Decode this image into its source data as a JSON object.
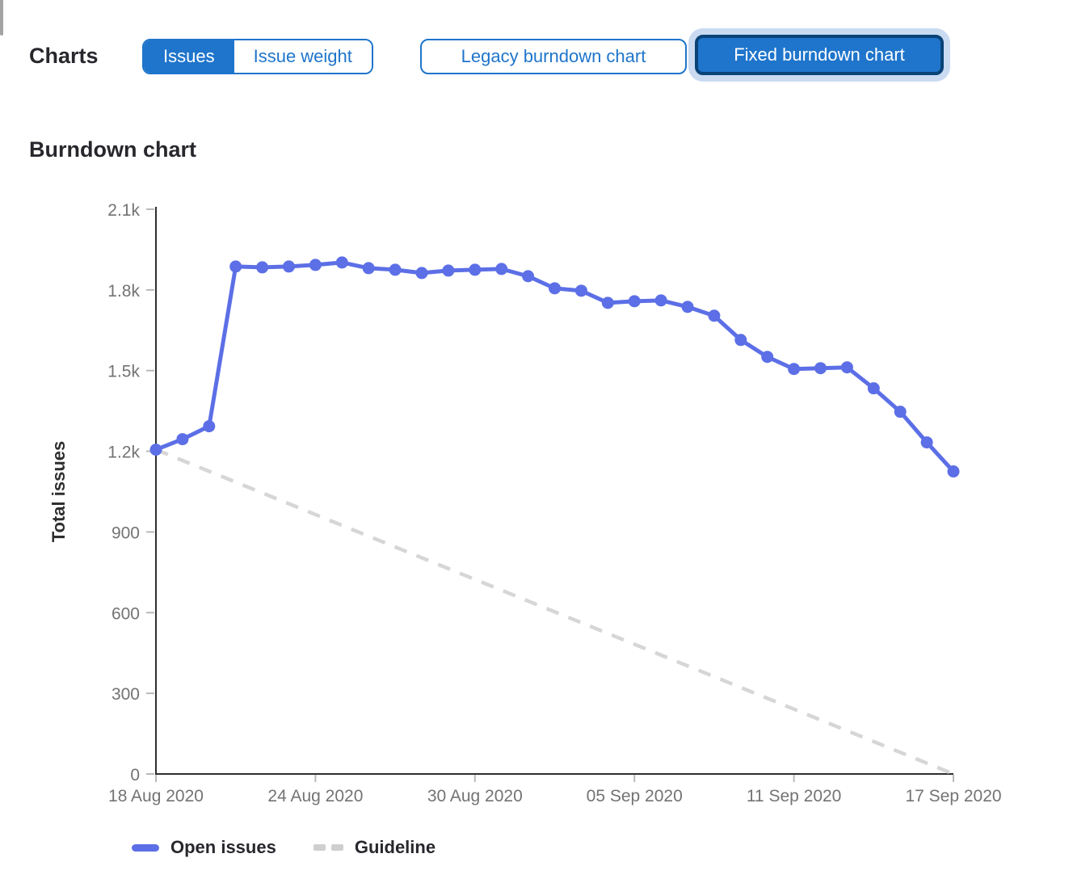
{
  "toolbar": {
    "charts_label": "Charts",
    "issues_label": "Issues",
    "issue_weight_label": "Issue weight",
    "legacy_label": "Legacy burndown chart",
    "fixed_label": "Fixed burndown chart"
  },
  "chart": {
    "title": "Burndown chart",
    "y_axis_label": "Total issues",
    "legend": [
      {
        "label": "Open issues",
        "color": "#5c6fe6"
      },
      {
        "label": "Guideline",
        "color": "#d6d6d6"
      }
    ]
  },
  "colors": {
    "accent_blue": "#1f75cb",
    "accent_blue_dark_border": "#0a4377",
    "focus_ring": "#c9daf1",
    "series_blue": "#5c6fe6",
    "guideline_gray": "#d6d6d6",
    "axis": "#2e2e2e",
    "tick_mark": "#b9b9b9",
    "tick_label": "#737373",
    "text_dark": "#28272d"
  },
  "chart_data": {
    "type": "line",
    "title": "Burndown chart",
    "xlabel": "",
    "ylabel": "Total issues",
    "ylim": [
      0,
      2100
    ],
    "grid": false,
    "legend_position": "bottom",
    "x": [
      "18 Aug 2020",
      "19 Aug 2020",
      "20 Aug 2020",
      "21 Aug 2020",
      "22 Aug 2020",
      "23 Aug 2020",
      "24 Aug 2020",
      "25 Aug 2020",
      "26 Aug 2020",
      "27 Aug 2020",
      "28 Aug 2020",
      "29 Aug 2020",
      "30 Aug 2020",
      "31 Aug 2020",
      "01 Sep 2020",
      "02 Sep 2020",
      "03 Sep 2020",
      "04 Sep 2020",
      "05 Sep 2020",
      "06 Sep 2020",
      "07 Sep 2020",
      "08 Sep 2020",
      "09 Sep 2020",
      "10 Sep 2020",
      "11 Sep 2020",
      "12 Sep 2020",
      "13 Sep 2020",
      "14 Sep 2020",
      "15 Sep 2020",
      "16 Sep 2020",
      "17 Sep 2020"
    ],
    "series": [
      {
        "name": "Open issues",
        "style": "solid",
        "color": "#5c6fe6",
        "values": [
          1206,
          1245,
          1293,
          1887,
          1884,
          1887,
          1893,
          1902,
          1881,
          1875,
          1863,
          1872,
          1875,
          1878,
          1851,
          1806,
          1797,
          1752,
          1758,
          1761,
          1737,
          1704,
          1614,
          1551,
          1506,
          1509,
          1512,
          1434,
          1347,
          1233,
          1125
        ]
      },
      {
        "name": "Guideline",
        "style": "dashed",
        "color": "#d6d6d6",
        "start": 1206,
        "end": 0
      }
    ],
    "x_tick_indices": [
      0,
      6,
      12,
      18,
      24,
      30
    ],
    "x_tick_labels": [
      "18 Aug 2020",
      "24 Aug 2020",
      "30 Aug 2020",
      "05 Sep 2020",
      "11 Sep 2020",
      "17 Sep 2020"
    ],
    "y_ticks": [
      0,
      300,
      600,
      900,
      1200,
      1500,
      1800,
      2100
    ],
    "y_tick_labels": [
      "0",
      "300",
      "600",
      "900",
      "1.2k",
      "1.5k",
      "1.8k",
      "2.1k"
    ]
  }
}
